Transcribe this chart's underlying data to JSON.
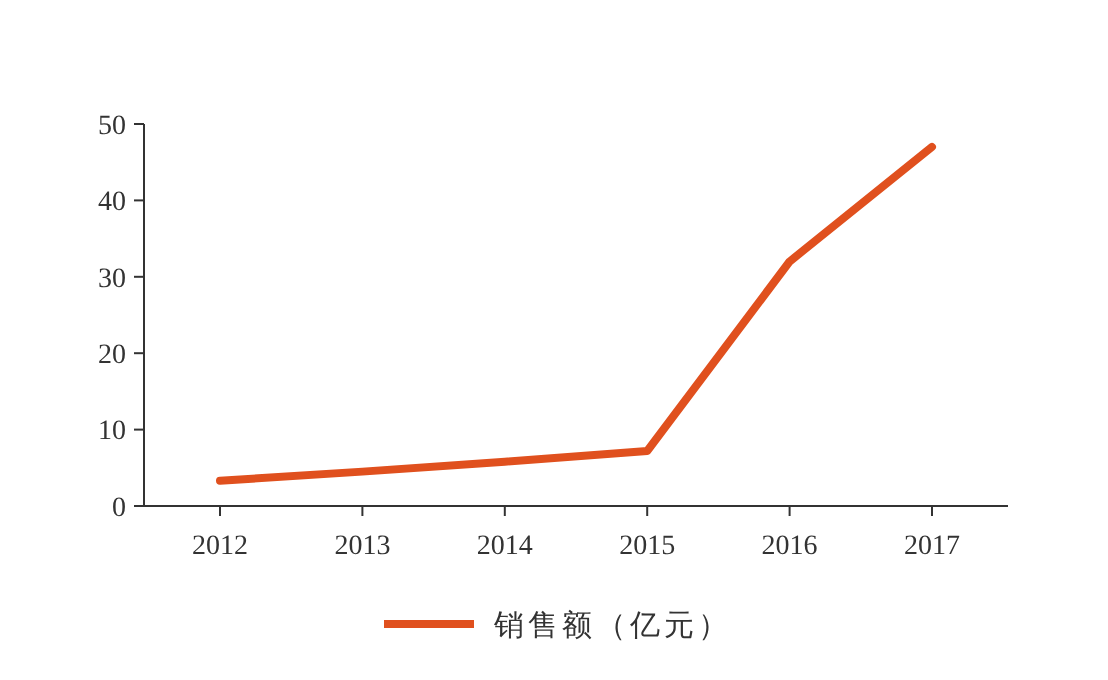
{
  "chart_data": {
    "type": "line",
    "categories": [
      "2012",
      "2013",
      "2014",
      "2015",
      "2016",
      "2017"
    ],
    "series": [
      {
        "name": "销售额（亿元）",
        "color": "#e0501e",
        "values": [
          3.3,
          4.5,
          5.8,
          7.2,
          32,
          47
        ]
      }
    ],
    "ylim": [
      0,
      50
    ],
    "yticks": [
      0,
      10,
      20,
      30,
      40,
      50
    ],
    "grid": false,
    "legend": "bottom",
    "marker": "none",
    "line_style": "solid"
  }
}
